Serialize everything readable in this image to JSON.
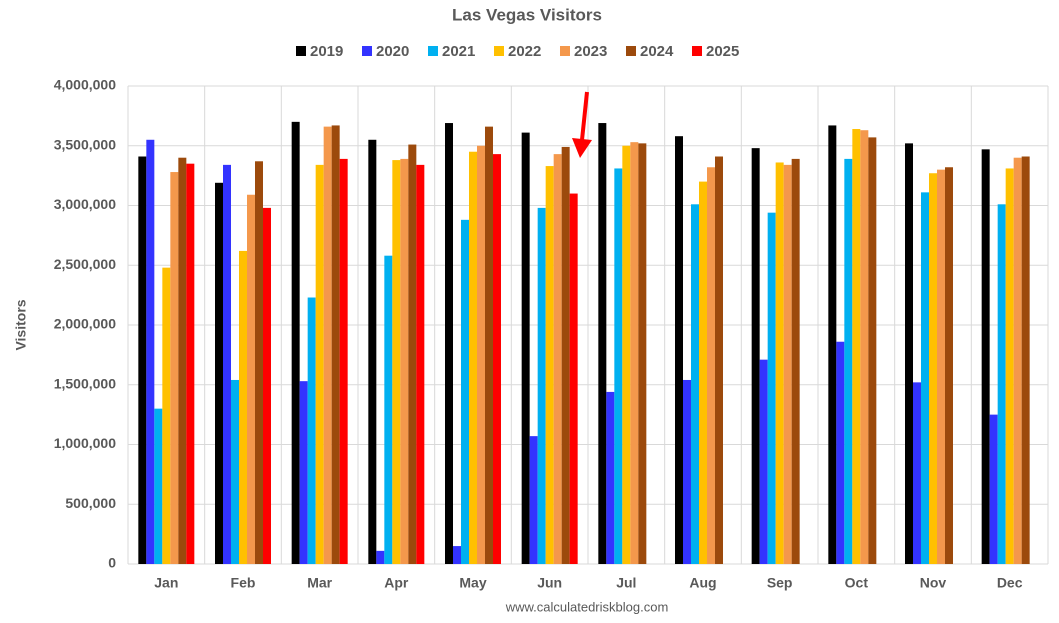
{
  "chart_data": {
    "type": "bar",
    "title": "Las Vegas Visitors",
    "y_label": "Visitors",
    "annotation": "www.calculatedriskblog.com",
    "categories": [
      "Jan",
      "Feb",
      "Mar",
      "Apr",
      "May",
      "Jun",
      "Jul",
      "Aug",
      "Sep",
      "Oct",
      "Nov",
      "Dec"
    ],
    "series": [
      {
        "name": "2019",
        "color": "#000000",
        "values": [
          3410000,
          3190000,
          3700000,
          3550000,
          3690000,
          3610000,
          3690000,
          3580000,
          3480000,
          3670000,
          3520000,
          3470000
        ]
      },
      {
        "name": "2020",
        "color": "#3333ff",
        "values": [
          3550000,
          3340000,
          1530000,
          110000,
          150000,
          1070000,
          1440000,
          1540000,
          1710000,
          1860000,
          1520000,
          1250000
        ]
      },
      {
        "name": "2021",
        "color": "#00b0f0",
        "values": [
          1300000,
          1540000,
          2230000,
          2580000,
          2880000,
          2980000,
          3310000,
          3010000,
          2940000,
          3390000,
          3110000,
          3010000
        ]
      },
      {
        "name": "2022",
        "color": "#ffc000",
        "values": [
          2480000,
          2620000,
          3340000,
          3380000,
          3450000,
          3330000,
          3500000,
          3200000,
          3360000,
          3640000,
          3270000,
          3310000
        ]
      },
      {
        "name": "2023",
        "color": "#f4984c",
        "values": [
          3280000,
          3090000,
          3660000,
          3390000,
          3500000,
          3430000,
          3530000,
          3320000,
          3340000,
          3630000,
          3300000,
          3400000
        ]
      },
      {
        "name": "2024",
        "color": "#9c4a0c",
        "values": [
          3400000,
          3370000,
          3670000,
          3510000,
          3660000,
          3490000,
          3520000,
          3410000,
          3390000,
          3570000,
          3320000,
          3410000
        ]
      },
      {
        "name": "2025",
        "color": "#ff0000",
        "values": [
          3350000,
          2980000,
          3390000,
          3340000,
          3430000,
          3100000,
          null,
          null,
          null,
          null,
          null,
          null
        ]
      }
    ],
    "ylim": [
      0,
      4000000
    ],
    "yticks": [
      0,
      {
        "value": 500000,
        "label": "500,000"
      },
      {
        "value": 1000000,
        "label": "1,000,000"
      },
      {
        "value": 1500000,
        "label": "1,500,000"
      },
      {
        "value": 2000000,
        "label": "2,000,000"
      },
      {
        "value": 2500000,
        "label": "2,500,000"
      },
      {
        "value": 3000000,
        "label": "3,000,000"
      },
      {
        "value": 3500000,
        "label": "3,500,000"
      },
      {
        "value": 4000000,
        "label": "4,000,000"
      }
    ],
    "grid": true,
    "legend": "top"
  }
}
